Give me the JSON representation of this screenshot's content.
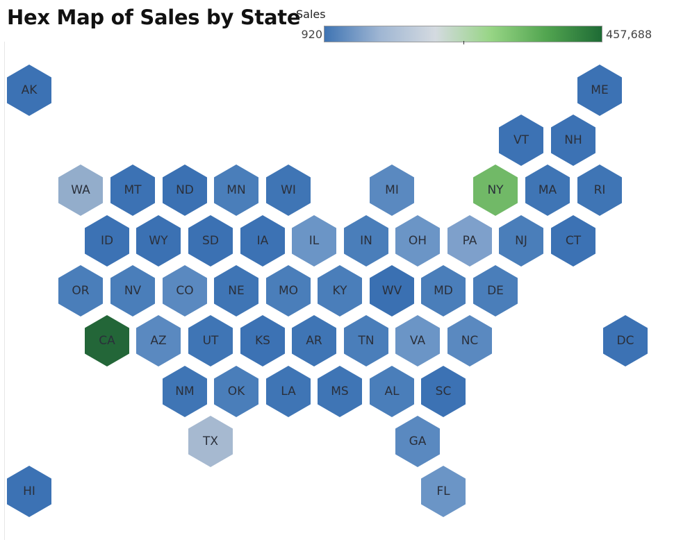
{
  "title": "Hex Map of Sales by State",
  "legend": {
    "title": "Sales",
    "min": "920",
    "max": "457,688",
    "gradient": [
      "#3f74b3",
      "#9fb6d3",
      "#d4dae0",
      "#97d585",
      "#52a550",
      "#1e6b35"
    ]
  },
  "states": [
    {
      "abbr": "AK",
      "color": "#3c72b4"
    },
    {
      "abbr": "ME",
      "color": "#3c72b4"
    },
    {
      "abbr": "VT",
      "color": "#3c72b4"
    },
    {
      "abbr": "NH",
      "color": "#3c72b4"
    },
    {
      "abbr": "WA",
      "color": "#93adcb"
    },
    {
      "abbr": "MT",
      "color": "#3c72b4"
    },
    {
      "abbr": "ND",
      "color": "#3b71b3"
    },
    {
      "abbr": "MN",
      "color": "#4a7eba"
    },
    {
      "abbr": "WI",
      "color": "#3f75b5"
    },
    {
      "abbr": "MI",
      "color": "#5a89c0"
    },
    {
      "abbr": "NY",
      "color": "#71b967"
    },
    {
      "abbr": "MA",
      "color": "#3f75b5"
    },
    {
      "abbr": "RI",
      "color": "#3f75b5"
    },
    {
      "abbr": "ID",
      "color": "#3c72b4"
    },
    {
      "abbr": "WY",
      "color": "#3b71b3"
    },
    {
      "abbr": "SD",
      "color": "#3b71b3"
    },
    {
      "abbr": "IA",
      "color": "#3c72b4"
    },
    {
      "abbr": "IL",
      "color": "#6b95c6"
    },
    {
      "abbr": "IN",
      "color": "#4a7eba"
    },
    {
      "abbr": "OH",
      "color": "#6b95c6"
    },
    {
      "abbr": "PA",
      "color": "#7ea0cb"
    },
    {
      "abbr": "NJ",
      "color": "#4a7eba"
    },
    {
      "abbr": "CT",
      "color": "#3c72b4"
    },
    {
      "abbr": "OR",
      "color": "#4a7eba"
    },
    {
      "abbr": "NV",
      "color": "#4a7eba"
    },
    {
      "abbr": "CO",
      "color": "#5a89c0"
    },
    {
      "abbr": "NE",
      "color": "#3f75b5"
    },
    {
      "abbr": "MO",
      "color": "#4a7eba"
    },
    {
      "abbr": "KY",
      "color": "#4a7eba"
    },
    {
      "abbr": "WV",
      "color": "#3a70b2"
    },
    {
      "abbr": "MD",
      "color": "#4a7eba"
    },
    {
      "abbr": "DE",
      "color": "#4a7eba"
    },
    {
      "abbr": "CA",
      "color": "#236638"
    },
    {
      "abbr": "AZ",
      "color": "#5a89c0"
    },
    {
      "abbr": "UT",
      "color": "#3f75b5"
    },
    {
      "abbr": "KS",
      "color": "#3c72b4"
    },
    {
      "abbr": "AR",
      "color": "#3f75b5"
    },
    {
      "abbr": "TN",
      "color": "#4a7eba"
    },
    {
      "abbr": "VA",
      "color": "#6b95c6"
    },
    {
      "abbr": "NC",
      "color": "#5a89c0"
    },
    {
      "abbr": "DC",
      "color": "#3c72b4"
    },
    {
      "abbr": "NM",
      "color": "#3f75b5"
    },
    {
      "abbr": "OK",
      "color": "#4a7eba"
    },
    {
      "abbr": "LA",
      "color": "#3f75b5"
    },
    {
      "abbr": "MS",
      "color": "#3f75b5"
    },
    {
      "abbr": "AL",
      "color": "#4a7eba"
    },
    {
      "abbr": "SC",
      "color": "#3c72b4"
    },
    {
      "abbr": "TX",
      "color": "#a6b9d0"
    },
    {
      "abbr": "GA",
      "color": "#5a89c0"
    },
    {
      "abbr": "HI",
      "color": "#3c72b4"
    },
    {
      "abbr": "FL",
      "color": "#6b95c6"
    }
  ]
}
